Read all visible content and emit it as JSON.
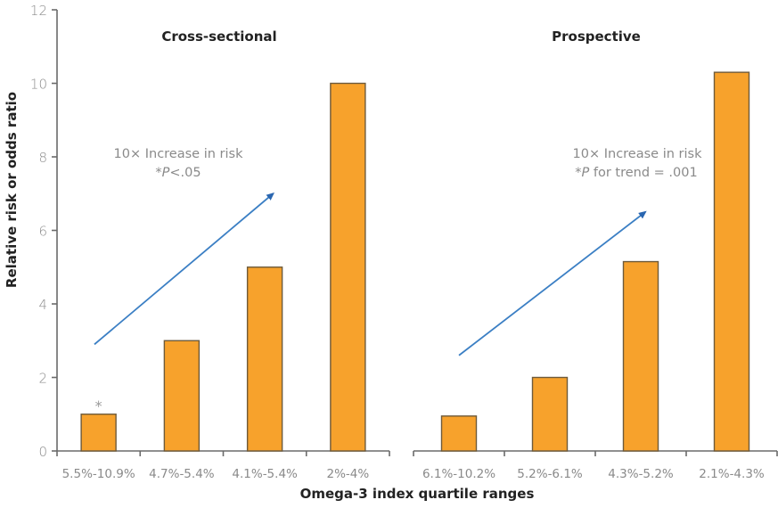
{
  "chart_data": {
    "type": "bar",
    "ylabel": "Relative risk or odds ratio",
    "xlabel": "Omega-3 index quartile ranges",
    "ylim": [
      0,
      12
    ],
    "yticks": [
      "0",
      "2",
      "4",
      "6",
      "8",
      "10",
      "12"
    ],
    "grid": false,
    "bar_color": "#f7a22c",
    "arrow_color": "#3b7fc4",
    "panels": [
      {
        "title": "Cross-sectional",
        "categories": [
          "5.5%-10.9%",
          "4.7%-5.4%",
          "4.1%-5.4%",
          "2%-4%"
        ],
        "values": [
          1.0,
          3.0,
          5.0,
          10.0
        ],
        "significance_marker": {
          "category_index": 0,
          "text": "*"
        },
        "annotation": {
          "line1": "10× Increase in risk",
          "line2_prefix": "*",
          "line2_italic": "P",
          "line2_suffix": "<.05"
        },
        "trend_arrow": {
          "from": [
            0.45,
            2.9
          ],
          "to": [
            2.6,
            7.0
          ]
        }
      },
      {
        "title": "Prospective",
        "categories": [
          "6.1%-10.2%",
          "5.2%-6.1%",
          "4.3%-5.2%",
          "2.1%-4.3%"
        ],
        "values": [
          0.95,
          2.0,
          5.15,
          10.3
        ],
        "annotation": {
          "line1": "10× Increase in risk",
          "line2_prefix": "*",
          "line2_italic": "P",
          "line2_suffix": " for trend = .001"
        },
        "trend_arrow": {
          "from": [
            0.5,
            2.6
          ],
          "to": [
            2.55,
            6.5
          ]
        }
      }
    ]
  }
}
